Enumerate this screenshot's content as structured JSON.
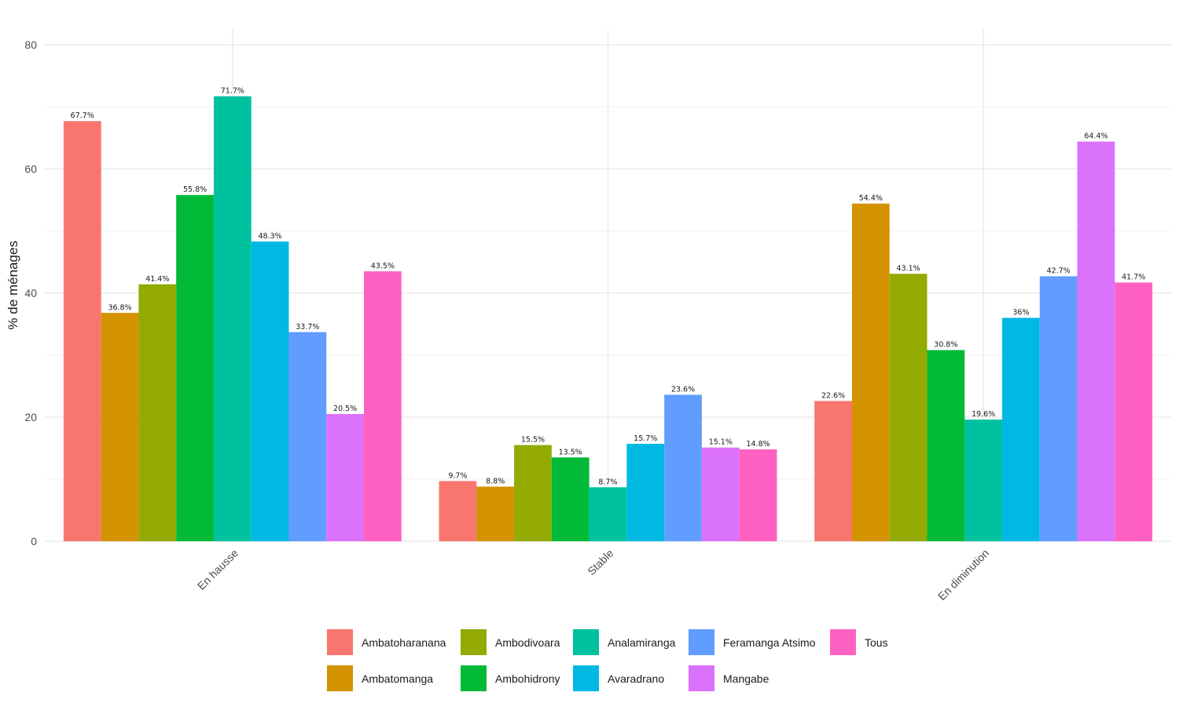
{
  "chart_data": {
    "type": "bar",
    "title": "",
    "xlabel": "",
    "ylabel": "% de ménages",
    "ylim": [
      0,
      80
    ],
    "yticks": [
      0,
      20,
      40,
      60,
      80
    ],
    "grid": true,
    "legend_position": "bottom",
    "categories": [
      "En hausse",
      "Stable",
      "En diminution"
    ],
    "series": [
      {
        "name": "Ambatoharanana",
        "color": "#F8766D",
        "values": [
          67.7,
          9.7,
          22.6
        ],
        "labels": [
          "67.7%",
          "9.7%",
          "22.6%"
        ]
      },
      {
        "name": "Ambatomanga",
        "color": "#D39200",
        "values": [
          36.8,
          8.8,
          54.4
        ],
        "labels": [
          "36.8%",
          "8.8%",
          "54.4%"
        ]
      },
      {
        "name": "Ambodivoara",
        "color": "#93AA00",
        "values": [
          41.4,
          15.5,
          43.1
        ],
        "labels": [
          "41.4%",
          "15.5%",
          "43.1%"
        ]
      },
      {
        "name": "Ambohidrony",
        "color": "#00BA38",
        "values": [
          55.8,
          13.5,
          30.8
        ],
        "labels": [
          "55.8%",
          "13.5%",
          "30.8%"
        ]
      },
      {
        "name": "Analamiranga",
        "color": "#00C19F",
        "values": [
          71.7,
          8.7,
          19.6
        ],
        "labels": [
          "71.7%",
          "8.7%",
          "19.6%"
        ]
      },
      {
        "name": "Avaradrano",
        "color": "#00B9E3",
        "values": [
          48.3,
          15.7,
          36.0
        ],
        "labels": [
          "48.3%",
          "15.7%",
          "36%"
        ]
      },
      {
        "name": "Feramanga Atsimo",
        "color": "#619CFF",
        "values": [
          33.7,
          23.6,
          42.7
        ],
        "labels": [
          "33.7%",
          "23.6%",
          "42.7%"
        ]
      },
      {
        "name": "Mangabe",
        "color": "#DB72FB",
        "values": [
          20.5,
          15.1,
          64.4
        ],
        "labels": [
          "20.5%",
          "15.1%",
          "64.4%"
        ]
      },
      {
        "name": "Tous",
        "color": "#FF61C3",
        "values": [
          43.5,
          14.8,
          41.7
        ],
        "labels": [
          "43.5%",
          "14.8%",
          "41.7%"
        ]
      }
    ],
    "legend_rows": [
      [
        "Ambatoharanana",
        "Ambodivoara",
        "Analamiranga",
        "Feramanga Atsimo",
        "Tous"
      ],
      [
        "Ambatomanga",
        "Ambohidrony",
        "Avaradrano",
        "Mangabe"
      ]
    ]
  }
}
